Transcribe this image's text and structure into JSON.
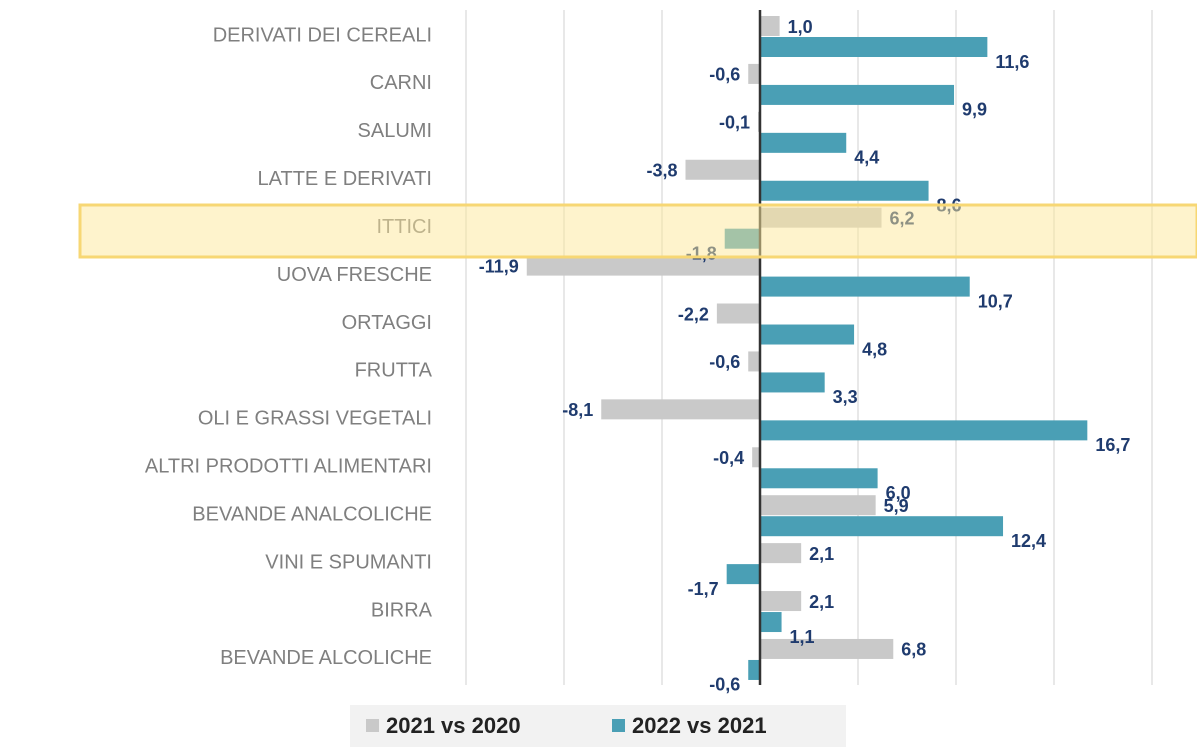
{
  "chart_data": {
    "type": "bar",
    "orientation": "horizontal",
    "categories": [
      "DERIVATI DEI CEREALI",
      "CARNI",
      "SALUMI",
      "LATTE E DERIVATI",
      "ITTICI",
      "UOVA FRESCHE",
      "ORTAGGI",
      "FRUTTA",
      "OLI E GRASSI VEGETALI",
      "ALTRI PRODOTTI ALIMENTARI",
      "BEVANDE ANALCOLICHE",
      "VINI E SPUMANTI",
      "BIRRA",
      "BEVANDE ALCOLICHE"
    ],
    "series": [
      {
        "name": "2021 vs 2020",
        "color": "#c9c9c9",
        "values": [
          1.0,
          -0.6,
          -0.1,
          -3.8,
          6.2,
          -11.9,
          -2.2,
          -0.6,
          -8.1,
          -0.4,
          5.9,
          2.1,
          2.1,
          6.8
        ],
        "value_labels": [
          "1,0",
          "-0,6",
          "-0,1",
          "-3,8",
          "6,2",
          "-11,9",
          "-2,2",
          "-0,6",
          "-8,1",
          "-0,4",
          "5,9",
          "2,1",
          "2,1",
          "6,8"
        ]
      },
      {
        "name": "2022 vs 2021",
        "color": "#4a9fb5",
        "values": [
          11.6,
          9.9,
          4.4,
          8.6,
          -1.8,
          10.7,
          4.8,
          3.3,
          16.7,
          6.0,
          12.4,
          -1.7,
          1.1,
          -0.6
        ],
        "value_labels": [
          "11,6",
          "9,9",
          "4,4",
          "8,6",
          "-1,8",
          "10,7",
          "4,8",
          "3,3",
          "16,7",
          "6,0",
          "12,4",
          "-1,7",
          "1,1",
          "-0,6"
        ]
      }
    ],
    "xlim": [
      -15,
      20
    ],
    "xticks": [
      -15,
      -10,
      -5,
      0,
      5,
      10,
      15,
      20
    ],
    "grid": true,
    "legend": "bottom"
  }
}
